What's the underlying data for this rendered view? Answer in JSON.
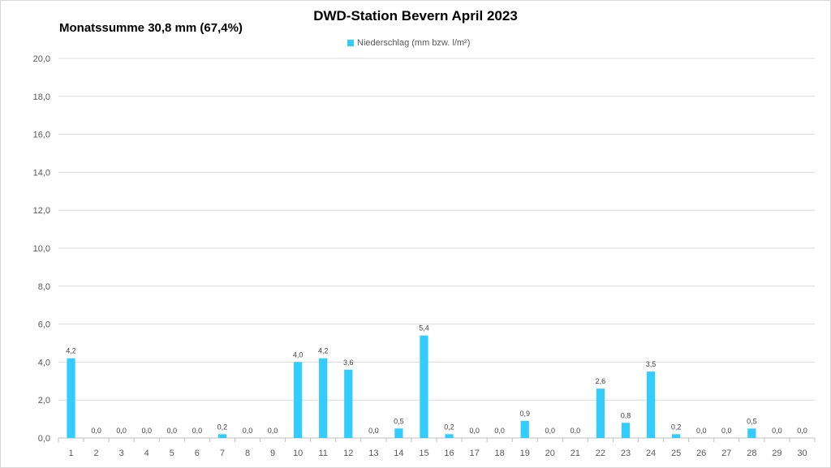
{
  "header": {
    "title": "DWD-Station  Bevern April 2023",
    "subtitle": "Monatssumme 30,8 mm (67,4%)"
  },
  "legend": {
    "label": "Niederschlag (mm bzw. l/m²)",
    "color": "#33ccff"
  },
  "chart_data": {
    "type": "bar",
    "title": "DWD-Station  Bevern April 2023",
    "xlabel": "",
    "ylabel": "",
    "ylim": [
      0,
      20
    ],
    "yticks": [
      "0,0",
      "2,0",
      "4,0",
      "6,0",
      "8,0",
      "10,0",
      "12,0",
      "14,0",
      "16,0",
      "18,0",
      "20,0"
    ],
    "grid": true,
    "legend_position": "top-center",
    "categories": [
      "1",
      "2",
      "3",
      "4",
      "5",
      "6",
      "7",
      "8",
      "9",
      "10",
      "11",
      "12",
      "13",
      "14",
      "15",
      "16",
      "17",
      "18",
      "19",
      "20",
      "21",
      "22",
      "23",
      "24",
      "25",
      "26",
      "27",
      "28",
      "29",
      "30"
    ],
    "series": [
      {
        "name": "Niederschlag (mm bzw. l/m²)",
        "color": "#33ccff",
        "values": [
          4.2,
          0.0,
          0.0,
          0.0,
          0.0,
          0.0,
          0.2,
          0.0,
          0.0,
          4.0,
          4.2,
          3.6,
          0.0,
          0.5,
          5.4,
          0.2,
          0.0,
          0.0,
          0.9,
          0.0,
          0.0,
          2.6,
          0.8,
          3.5,
          0.2,
          0.0,
          0.0,
          0.5,
          0.0,
          0.0
        ],
        "labels": [
          "4,2",
          "0,0",
          "0,0",
          "0,0",
          "0,0",
          "0,0",
          "0,2",
          "0,0",
          "0,0",
          "4,0",
          "4,2",
          "3,6",
          "0,0",
          "0,5",
          "5,4",
          "0,2",
          "0,0",
          "0,0",
          "0,9",
          "0,0",
          "0,0",
          "2,6",
          "0,8",
          "3,5",
          "0,2",
          "0,0",
          "0,0",
          "0,5",
          "0,0",
          "0,0"
        ]
      }
    ]
  }
}
